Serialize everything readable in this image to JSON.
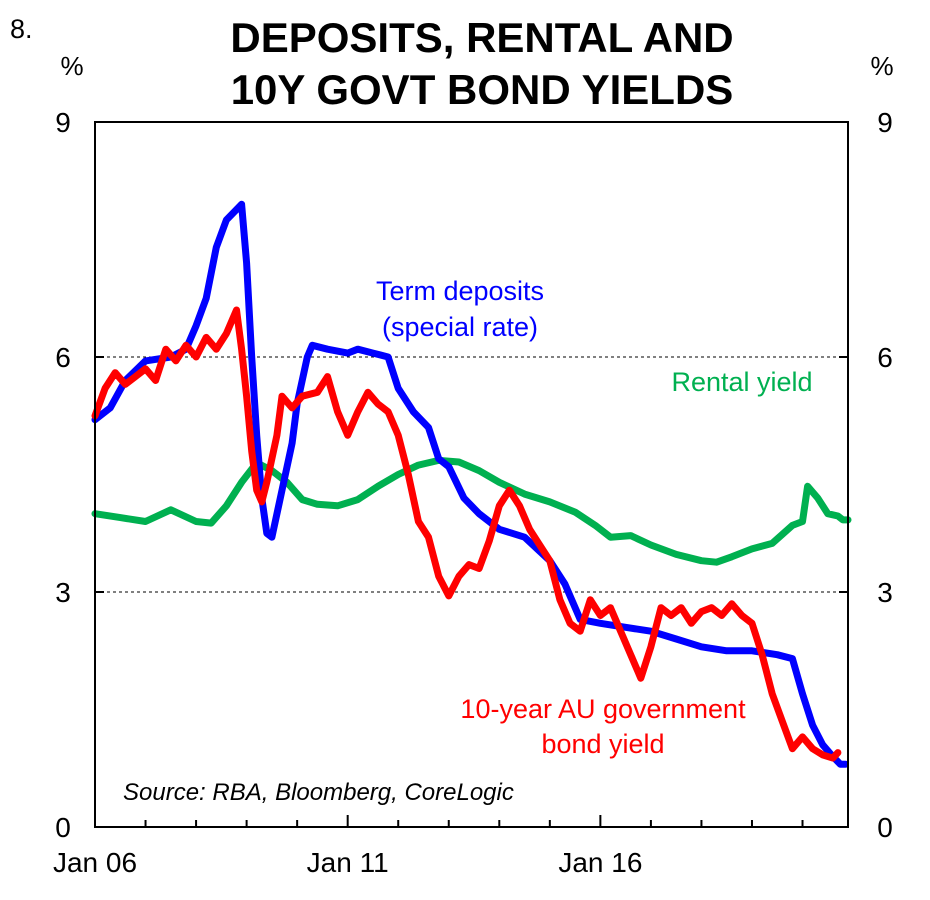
{
  "chart_data": {
    "type": "line",
    "chart_number": "8.",
    "title_lines": [
      "DEPOSITS, RENTAL AND",
      "10Y GOVT BOND YIELDS"
    ],
    "ylabel_left": "%",
    "ylabel_right": "%",
    "ylim": [
      0,
      9
    ],
    "yticks": [
      0,
      3,
      6,
      9
    ],
    "gridlines": [
      3,
      6
    ],
    "xlim": [
      2006.0,
      2020.9
    ],
    "xticks": [
      {
        "label": "Jan 06",
        "value": 2006.0
      },
      {
        "label": "Jan 11",
        "value": 2011.0
      },
      {
        "label": "Jan 16",
        "value": 2016.0
      }
    ],
    "source": "Source: RBA, Bloomberg, CoreLogic",
    "series": [
      {
        "name": "Rental yield",
        "label_lines": [
          "Rental yield"
        ],
        "color": "#00b050",
        "points": [
          [
            2006.0,
            4.0
          ],
          [
            2006.5,
            3.95
          ],
          [
            2007.0,
            3.9
          ],
          [
            2007.5,
            4.05
          ],
          [
            2008.0,
            3.9
          ],
          [
            2008.3,
            3.88
          ],
          [
            2008.6,
            4.1
          ],
          [
            2008.9,
            4.4
          ],
          [
            2009.2,
            4.65
          ],
          [
            2009.5,
            4.55
          ],
          [
            2009.8,
            4.4
          ],
          [
            2010.1,
            4.18
          ],
          [
            2010.4,
            4.12
          ],
          [
            2010.8,
            4.1
          ],
          [
            2011.2,
            4.18
          ],
          [
            2011.6,
            4.35
          ],
          [
            2012.0,
            4.5
          ],
          [
            2012.4,
            4.62
          ],
          [
            2012.8,
            4.68
          ],
          [
            2013.2,
            4.66
          ],
          [
            2013.6,
            4.55
          ],
          [
            2014.0,
            4.4
          ],
          [
            2014.5,
            4.25
          ],
          [
            2015.0,
            4.15
          ],
          [
            2015.5,
            4.02
          ],
          [
            2015.9,
            3.85
          ],
          [
            2016.2,
            3.7
          ],
          [
            2016.6,
            3.72
          ],
          [
            2017.0,
            3.6
          ],
          [
            2017.5,
            3.48
          ],
          [
            2018.0,
            3.4
          ],
          [
            2018.3,
            3.38
          ],
          [
            2018.6,
            3.45
          ],
          [
            2019.0,
            3.55
          ],
          [
            2019.4,
            3.62
          ],
          [
            2019.8,
            3.85
          ],
          [
            2020.0,
            3.9
          ],
          [
            2020.1,
            4.35
          ],
          [
            2020.3,
            4.2
          ],
          [
            2020.5,
            4.0
          ],
          [
            2020.7,
            3.97
          ],
          [
            2020.8,
            3.92
          ],
          [
            2020.9,
            3.92
          ]
        ]
      },
      {
        "name": "Term deposits (special rate)",
        "label_lines": [
          "Term deposits",
          "(special rate)"
        ],
        "color": "#0000ff",
        "points": [
          [
            2006.0,
            5.2
          ],
          [
            2006.3,
            5.35
          ],
          [
            2006.6,
            5.7
          ],
          [
            2007.0,
            5.95
          ],
          [
            2007.5,
            6.0
          ],
          [
            2007.8,
            6.1
          ],
          [
            2008.0,
            6.4
          ],
          [
            2008.2,
            6.75
          ],
          [
            2008.4,
            7.4
          ],
          [
            2008.6,
            7.75
          ],
          [
            2008.9,
            7.95
          ],
          [
            2009.0,
            7.2
          ],
          [
            2009.1,
            6.0
          ],
          [
            2009.2,
            5.0
          ],
          [
            2009.3,
            4.2
          ],
          [
            2009.4,
            3.75
          ],
          [
            2009.5,
            3.7
          ],
          [
            2009.7,
            4.3
          ],
          [
            2009.9,
            4.9
          ],
          [
            2010.0,
            5.4
          ],
          [
            2010.2,
            6.0
          ],
          [
            2010.3,
            6.15
          ],
          [
            2010.6,
            6.1
          ],
          [
            2011.0,
            6.05
          ],
          [
            2011.2,
            6.1
          ],
          [
            2011.5,
            6.05
          ],
          [
            2011.8,
            6.0
          ],
          [
            2012.0,
            5.6
          ],
          [
            2012.3,
            5.3
          ],
          [
            2012.6,
            5.1
          ],
          [
            2012.8,
            4.7
          ],
          [
            2013.0,
            4.6
          ],
          [
            2013.3,
            4.2
          ],
          [
            2013.6,
            4.0
          ],
          [
            2014.0,
            3.8
          ],
          [
            2014.5,
            3.7
          ],
          [
            2015.0,
            3.4
          ],
          [
            2015.3,
            3.1
          ],
          [
            2015.6,
            2.65
          ],
          [
            2016.0,
            2.6
          ],
          [
            2016.5,
            2.55
          ],
          [
            2017.0,
            2.5
          ],
          [
            2017.5,
            2.4
          ],
          [
            2018.0,
            2.3
          ],
          [
            2018.5,
            2.25
          ],
          [
            2019.0,
            2.25
          ],
          [
            2019.5,
            2.2
          ],
          [
            2019.8,
            2.15
          ],
          [
            2020.0,
            1.7
          ],
          [
            2020.2,
            1.3
          ],
          [
            2020.4,
            1.05
          ],
          [
            2020.6,
            0.9
          ],
          [
            2020.75,
            0.8
          ],
          [
            2020.85,
            0.8
          ]
        ]
      },
      {
        "name": "10-year AU government bond yield",
        "label_lines": [
          "10-year AU government",
          "bond yield"
        ],
        "color": "#ff0000",
        "points": [
          [
            2006.0,
            5.25
          ],
          [
            2006.2,
            5.6
          ],
          [
            2006.4,
            5.8
          ],
          [
            2006.6,
            5.65
          ],
          [
            2006.8,
            5.75
          ],
          [
            2007.0,
            5.85
          ],
          [
            2007.2,
            5.7
          ],
          [
            2007.4,
            6.1
          ],
          [
            2007.6,
            5.95
          ],
          [
            2007.8,
            6.15
          ],
          [
            2008.0,
            6.0
          ],
          [
            2008.2,
            6.25
          ],
          [
            2008.4,
            6.1
          ],
          [
            2008.6,
            6.3
          ],
          [
            2008.8,
            6.6
          ],
          [
            2008.9,
            6.1
          ],
          [
            2009.0,
            5.5
          ],
          [
            2009.1,
            4.8
          ],
          [
            2009.2,
            4.3
          ],
          [
            2009.3,
            4.15
          ],
          [
            2009.4,
            4.4
          ],
          [
            2009.6,
            5.0
          ],
          [
            2009.7,
            5.5
          ],
          [
            2009.9,
            5.35
          ],
          [
            2010.1,
            5.5
          ],
          [
            2010.4,
            5.55
          ],
          [
            2010.6,
            5.75
          ],
          [
            2010.8,
            5.3
          ],
          [
            2011.0,
            5.0
          ],
          [
            2011.2,
            5.3
          ],
          [
            2011.4,
            5.55
          ],
          [
            2011.6,
            5.4
          ],
          [
            2011.8,
            5.3
          ],
          [
            2012.0,
            5.0
          ],
          [
            2012.2,
            4.5
          ],
          [
            2012.4,
            3.9
          ],
          [
            2012.6,
            3.7
          ],
          [
            2012.8,
            3.2
          ],
          [
            2013.0,
            2.95
          ],
          [
            2013.2,
            3.2
          ],
          [
            2013.4,
            3.35
          ],
          [
            2013.6,
            3.3
          ],
          [
            2013.8,
            3.65
          ],
          [
            2014.0,
            4.1
          ],
          [
            2014.2,
            4.3
          ],
          [
            2014.4,
            4.1
          ],
          [
            2014.6,
            3.8
          ],
          [
            2014.8,
            3.6
          ],
          [
            2015.0,
            3.4
          ],
          [
            2015.2,
            2.9
          ],
          [
            2015.4,
            2.6
          ],
          [
            2015.6,
            2.5
          ],
          [
            2015.8,
            2.9
          ],
          [
            2016.0,
            2.7
          ],
          [
            2016.2,
            2.8
          ],
          [
            2016.4,
            2.5
          ],
          [
            2016.6,
            2.2
          ],
          [
            2016.8,
            1.9
          ],
          [
            2017.0,
            2.3
          ],
          [
            2017.2,
            2.8
          ],
          [
            2017.4,
            2.7
          ],
          [
            2017.6,
            2.8
          ],
          [
            2017.8,
            2.6
          ],
          [
            2018.0,
            2.75
          ],
          [
            2018.2,
            2.8
          ],
          [
            2018.4,
            2.7
          ],
          [
            2018.6,
            2.85
          ],
          [
            2018.8,
            2.7
          ],
          [
            2019.0,
            2.6
          ],
          [
            2019.2,
            2.2
          ],
          [
            2019.4,
            1.7
          ],
          [
            2019.6,
            1.35
          ],
          [
            2019.8,
            1.0
          ],
          [
            2020.0,
            1.15
          ],
          [
            2020.2,
            1.0
          ],
          [
            2020.4,
            0.92
          ],
          [
            2020.6,
            0.88
          ],
          [
            2020.7,
            0.95
          ]
        ]
      }
    ]
  }
}
